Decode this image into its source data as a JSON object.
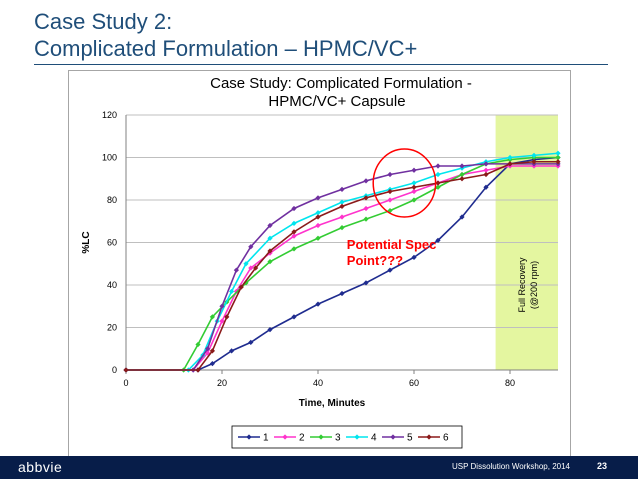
{
  "slide": {
    "title_line1": "Case Study 2:",
    "title_line2": "Complicated Formulation – HPMC/VC+",
    "title_color": "#1f4e79"
  },
  "footer": {
    "logo": "abbvie",
    "text": "USP Dissolution Workshop, 2014",
    "page": "23",
    "background": "#071d49"
  },
  "chart_data": {
    "type": "line",
    "title_line1": "Case Study: Complicated Formulation -",
    "title_line2": "HPMC/VC+ Capsule",
    "xlabel": "Time, Minutes",
    "ylabel": "%LC",
    "xlim": [
      0,
      90
    ],
    "ylim": [
      0,
      120
    ],
    "xticks": [
      0,
      20,
      40,
      60,
      80
    ],
    "yticks": [
      0,
      20,
      40,
      60,
      80,
      100,
      120
    ],
    "grid": true,
    "legend_position": "bottom",
    "highlight": {
      "x_start": 77,
      "x_end": 90,
      "color": "#e4f6a0",
      "label_line1": "Full Recovery",
      "label_line2": "(@200 rpm)"
    },
    "annotation": {
      "text_line1": "Potential Spec",
      "text_line2": "Point???",
      "x": 46,
      "y": 55,
      "color": "#ff0000"
    },
    "circle": {
      "cx": 58,
      "cy": 88,
      "rx": 6.5,
      "ry": 16,
      "color": "#ff0000"
    },
    "series": [
      {
        "name": "1",
        "color": "#1f2c8f",
        "marker": "diamond",
        "x": [
          0,
          15,
          18,
          22,
          26,
          30,
          35,
          40,
          45,
          50,
          55,
          60,
          65,
          70,
          75,
          80,
          85,
          90
        ],
        "y": [
          0,
          0,
          3,
          9,
          13,
          19,
          25,
          31,
          36,
          41,
          47,
          53,
          61,
          72,
          86,
          97,
          99,
          100
        ]
      },
      {
        "name": "2",
        "color": "#ff33cc",
        "marker": "diamond",
        "x": [
          0,
          14,
          17,
          20,
          23,
          26,
          30,
          35,
          40,
          45,
          50,
          55,
          60,
          65,
          70,
          75,
          80,
          85,
          90
        ],
        "y": [
          0,
          0,
          8,
          23,
          37,
          48,
          55,
          63,
          68,
          72,
          76,
          80,
          84,
          88,
          92,
          94,
          96,
          96,
          96
        ]
      },
      {
        "name": "3",
        "color": "#33cc33",
        "marker": "diamond",
        "x": [
          0,
          12,
          15,
          18,
          21,
          25,
          30,
          35,
          40,
          45,
          50,
          55,
          60,
          65,
          70,
          75,
          80,
          85,
          90
        ],
        "y": [
          0,
          0,
          12,
          25,
          32,
          41,
          51,
          57,
          62,
          67,
          71,
          75,
          80,
          86,
          92,
          97,
          99,
          100,
          100
        ]
      },
      {
        "name": "4",
        "color": "#00e5ee",
        "marker": "diamond",
        "x": [
          0,
          13,
          16,
          19,
          22,
          25,
          30,
          35,
          40,
          45,
          50,
          55,
          60,
          65,
          70,
          75,
          80,
          85,
          90
        ],
        "y": [
          0,
          0,
          7,
          23,
          37,
          50,
          62,
          69,
          74,
          79,
          82,
          85,
          88,
          92,
          95,
          98,
          100,
          101,
          102
        ]
      },
      {
        "name": "5",
        "color": "#7030a0",
        "marker": "diamond",
        "x": [
          0,
          14,
          17,
          20,
          23,
          26,
          30,
          35,
          40,
          45,
          50,
          55,
          60,
          65,
          70,
          75,
          80,
          85,
          90
        ],
        "y": [
          0,
          0,
          10,
          30,
          47,
          58,
          68,
          76,
          81,
          85,
          89,
          92,
          94,
          96,
          96,
          97,
          97,
          97,
          97
        ]
      },
      {
        "name": "6",
        "color": "#8b1a1a",
        "marker": "diamond",
        "x": [
          0,
          15,
          18,
          21,
          24,
          27,
          30,
          35,
          40,
          45,
          50,
          55,
          60,
          65,
          70,
          75,
          80,
          85,
          90
        ],
        "y": [
          0,
          0,
          9,
          25,
          39,
          48,
          56,
          65,
          72,
          77,
          81,
          84,
          86,
          88,
          90,
          92,
          97,
          98,
          98
        ]
      }
    ]
  }
}
